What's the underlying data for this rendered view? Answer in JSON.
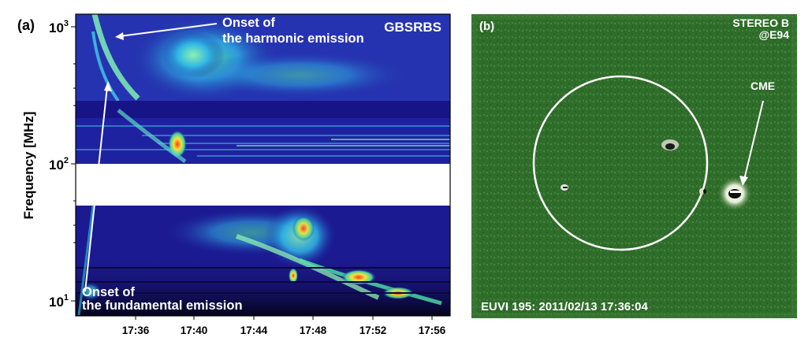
{
  "figure": {
    "panel_a": {
      "label": "(a)",
      "instrument": "GBSRBS",
      "ylabel": "Frequency [MHz]",
      "y_scale": "log",
      "yticks": [
        {
          "base": "10",
          "exp": "1",
          "value": 10
        },
        {
          "base": "10",
          "exp": "2",
          "value": 100
        },
        {
          "base": "10",
          "exp": "3",
          "value": 1000
        }
      ],
      "xticks": [
        "17:36",
        "17:40",
        "17:44",
        "17:48",
        "17:52",
        "17:56"
      ],
      "annotation_harmonic": [
        "Onset of",
        "the harmonic emission"
      ],
      "annotation_fundamental": [
        "Onset of",
        "the fundamental emission"
      ],
      "colormap": "spectrogram (blue-cyan-yellow-red)"
    },
    "panel_b": {
      "label": "(b)",
      "spacecraft": "STEREO B",
      "position": "@E94",
      "feature": "CME",
      "caption": "EUVI 195: 2011/02/13 17:36:04",
      "colors": {
        "background": "#2f6d2a",
        "limb": "#ffffff"
      }
    }
  }
}
